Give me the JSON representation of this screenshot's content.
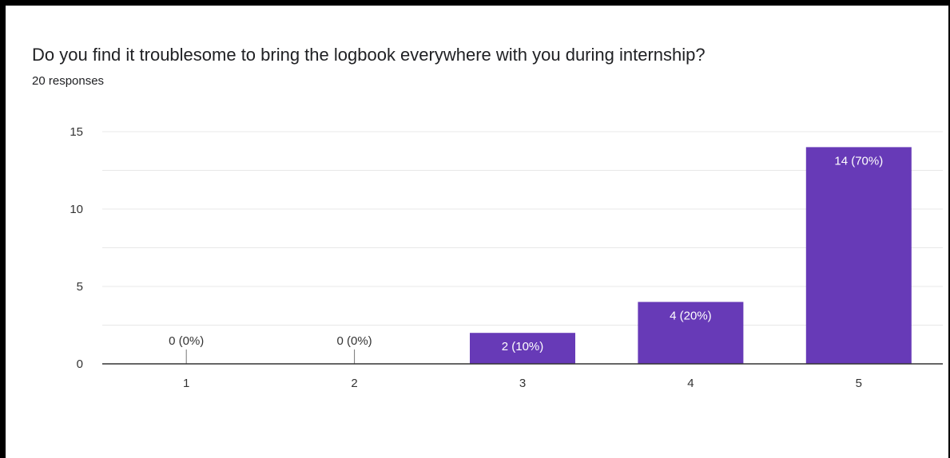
{
  "question": {
    "title": "Do you find it troublesome to bring the logbook everywhere with you during internship?",
    "responses_label": "20 responses"
  },
  "colors": {
    "bar": "#673ab7",
    "grid": "#e8e8e8",
    "axis": "#333333",
    "text": "#333333",
    "bar_label_inside": "#ffffff"
  },
  "chart_data": {
    "type": "bar",
    "categories": [
      "1",
      "2",
      "3",
      "4",
      "5"
    ],
    "values": [
      0,
      0,
      2,
      4,
      14
    ],
    "labels": [
      "0 (0%)",
      "0 (0%)",
      "2 (10%)",
      "4 (20%)",
      "14 (70%)"
    ],
    "ylim": [
      0,
      15
    ],
    "yticks": [
      "0",
      "5",
      "10",
      "15"
    ],
    "grid": true,
    "xlabel": "",
    "ylabel": ""
  }
}
